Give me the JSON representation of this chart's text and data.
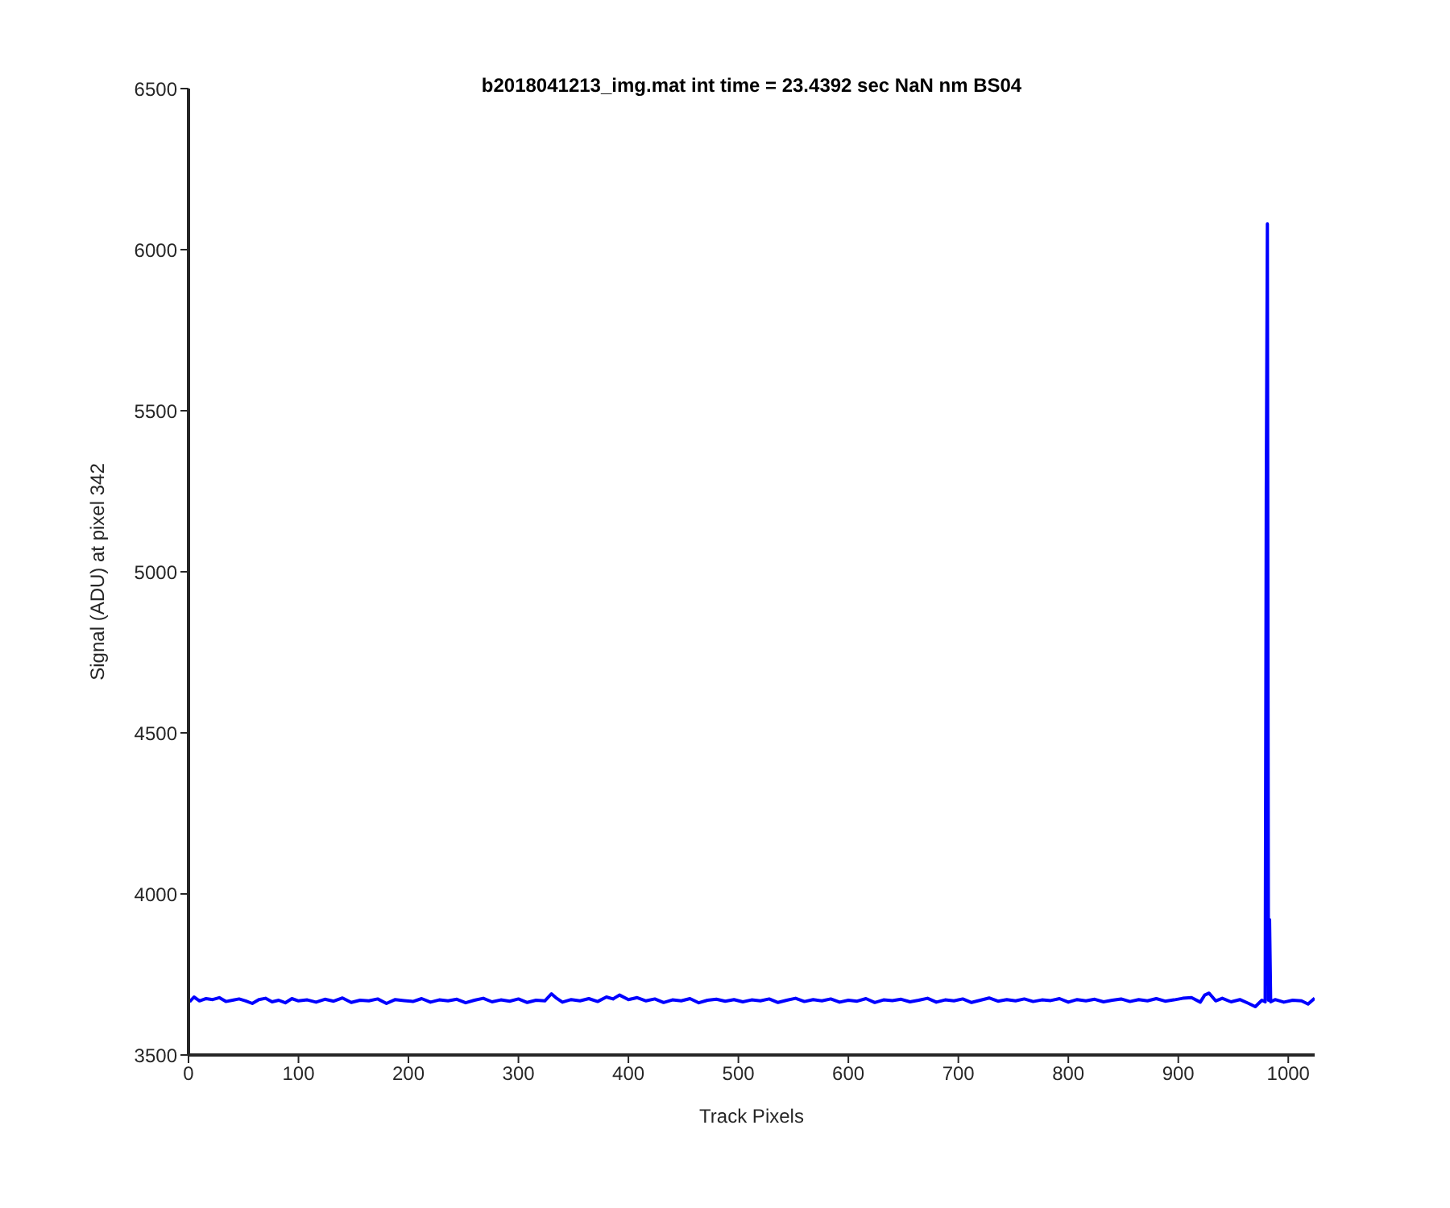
{
  "chart_data": {
    "type": "line",
    "title": "b2018041213_img.mat int time = 23.4392 sec  NaN nm BS04",
    "xlabel": "Track Pixels",
    "ylabel": "Signal (ADU) at pixel 342",
    "xlim": [
      0,
      1024
    ],
    "xticks": [
      0,
      100,
      200,
      300,
      400,
      500,
      600,
      700,
      800,
      900,
      1000
    ],
    "ylim": [
      3500,
      6500
    ],
    "yticks": [
      3500,
      4000,
      4500,
      5000,
      5500,
      6000,
      6500
    ],
    "marker": "none",
    "line_style": "solid",
    "series": [
      {
        "color": "#0000ff",
        "x": [
          1,
          5,
          10,
          16,
          22,
          28,
          34,
          40,
          46,
          52,
          58,
          64,
          70,
          76,
          82,
          88,
          94,
          100,
          108,
          116,
          124,
          132,
          140,
          148,
          156,
          164,
          172,
          180,
          188,
          196,
          204,
          212,
          220,
          228,
          236,
          244,
          252,
          260,
          268,
          276,
          284,
          292,
          300,
          308,
          316,
          324,
          330,
          334,
          340,
          348,
          356,
          364,
          372,
          380,
          386,
          392,
          400,
          408,
          416,
          424,
          432,
          440,
          448,
          456,
          464,
          472,
          480,
          488,
          496,
          504,
          512,
          520,
          528,
          536,
          544,
          552,
          560,
          568,
          576,
          584,
          592,
          600,
          608,
          616,
          624,
          632,
          640,
          648,
          656,
          664,
          672,
          680,
          688,
          696,
          704,
          712,
          720,
          728,
          736,
          744,
          752,
          760,
          768,
          776,
          784,
          792,
          800,
          808,
          816,
          824,
          832,
          840,
          848,
          856,
          864,
          872,
          880,
          888,
          896,
          904,
          912,
          920,
          924,
          928,
          934,
          940,
          948,
          956,
          964,
          970,
          976,
          979,
          980,
          981,
          982,
          983,
          984,
          988,
          996,
          1004,
          1012,
          1018,
          1024
        ],
        "values": [
          3665,
          3680,
          3668,
          3675,
          3672,
          3678,
          3666,
          3670,
          3674,
          3668,
          3660,
          3672,
          3676,
          3665,
          3670,
          3662,
          3675,
          3668,
          3671,
          3664,
          3673,
          3667,
          3677,
          3663,
          3670,
          3668,
          3674,
          3660,
          3672,
          3669,
          3666,
          3675,
          3664,
          3671,
          3668,
          3673,
          3662,
          3670,
          3676,
          3665,
          3671,
          3667,
          3674,
          3663,
          3670,
          3668,
          3690,
          3678,
          3664,
          3672,
          3668,
          3675,
          3666,
          3680,
          3674,
          3686,
          3672,
          3678,
          3668,
          3674,
          3663,
          3671,
          3668,
          3675,
          3662,
          3670,
          3673,
          3667,
          3672,
          3665,
          3671,
          3668,
          3674,
          3663,
          3670,
          3676,
          3666,
          3672,
          3668,
          3674,
          3664,
          3670,
          3667,
          3675,
          3663,
          3671,
          3669,
          3673,
          3665,
          3670,
          3676,
          3664,
          3671,
          3668,
          3674,
          3663,
          3670,
          3677,
          3667,
          3672,
          3668,
          3674,
          3666,
          3671,
          3669,
          3675,
          3664,
          3672,
          3668,
          3673,
          3665,
          3670,
          3674,
          3666,
          3672,
          3668,
          3675,
          3667,
          3671,
          3676,
          3678,
          3664,
          3686,
          3692,
          3668,
          3676,
          3665,
          3672,
          3660,
          3650,
          3670,
          3665,
          5260,
          6080,
          3670,
          3920,
          3665,
          3672,
          3664,
          3670,
          3668,
          3658,
          3676
        ]
      }
    ]
  }
}
